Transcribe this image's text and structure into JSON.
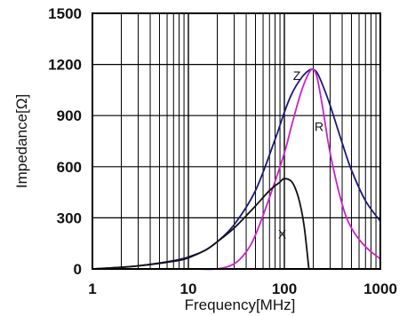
{
  "chart_data": {
    "type": "line",
    "title": "",
    "xlabel": "Frequency[MHz]",
    "ylabel": "Impedance[Ω]",
    "xscale": "log",
    "xlim": [
      1,
      1000
    ],
    "ylim": [
      0,
      1500
    ],
    "x_ticks": [
      1,
      10,
      100,
      1000
    ],
    "x_tick_labels": [
      "1",
      "10",
      "100",
      "1000"
    ],
    "y_ticks": [
      0,
      300,
      600,
      900,
      1200,
      1500
    ],
    "y_tick_labels": [
      "0",
      "300",
      "600",
      "900",
      "1200",
      "1500"
    ],
    "grid": true,
    "legend": "none",
    "series": [
      {
        "name": "Z",
        "color": "#1a1a7a",
        "x": [
          1,
          2,
          3,
          5,
          8,
          10,
          15,
          20,
          30,
          50,
          80,
          100,
          120,
          150,
          180,
          200,
          220,
          250,
          300,
          400,
          500,
          700,
          1000
        ],
        "values": [
          0,
          10,
          18,
          35,
          55,
          70,
          110,
          160,
          260,
          460,
          760,
          920,
          1030,
          1120,
          1165,
          1170,
          1150,
          1080,
          960,
          740,
          580,
          400,
          280
        ]
      },
      {
        "name": "R",
        "color": "#cc22cc",
        "x": [
          1,
          10,
          20,
          30,
          40,
          50,
          70,
          100,
          120,
          150,
          180,
          200,
          220,
          250,
          300,
          400,
          500,
          700,
          1000
        ],
        "values": [
          0,
          0,
          0,
          30,
          100,
          200,
          420,
          680,
          850,
          1040,
          1150,
          1170,
          1120,
          950,
          680,
          380,
          240,
          130,
          60
        ]
      },
      {
        "name": "X",
        "color": "#111111",
        "x": [
          1,
          2,
          3,
          5,
          8,
          10,
          15,
          20,
          30,
          50,
          70,
          90,
          100,
          120,
          140,
          160,
          180
        ],
        "values": [
          0,
          10,
          18,
          33,
          50,
          65,
          110,
          160,
          240,
          370,
          460,
          510,
          530,
          510,
          420,
          260,
          0
        ]
      }
    ]
  }
}
